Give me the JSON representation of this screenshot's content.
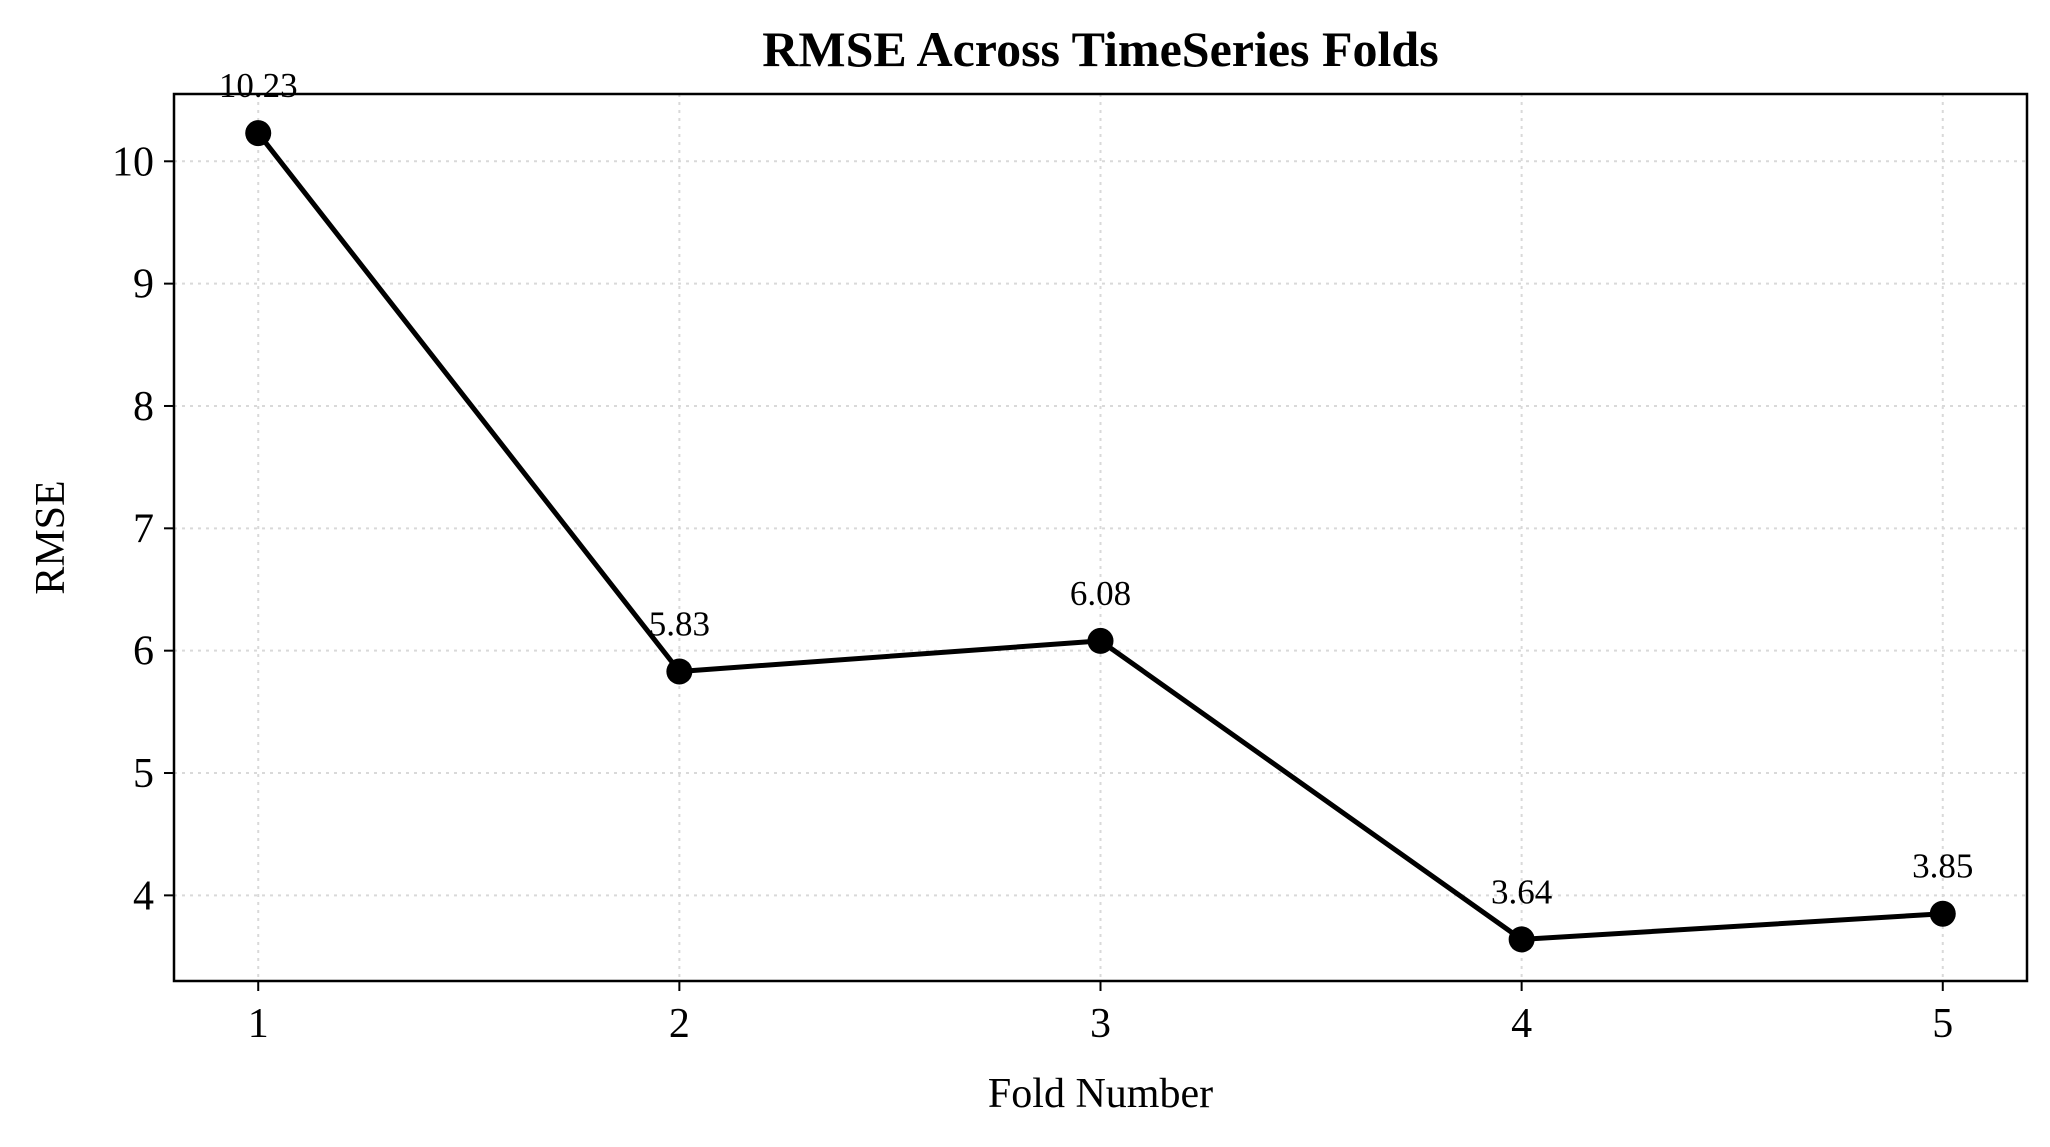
{
  "chart_data": {
    "type": "line",
    "title": "RMSE Across TimeSeries Folds",
    "xlabel": "Fold Number",
    "ylabel": "RMSE",
    "x": [
      1,
      2,
      3,
      4,
      5
    ],
    "x_tick_labels": [
      "1",
      "2",
      "3",
      "4",
      "5"
    ],
    "xlim": [
      0.8,
      5.2
    ],
    "y_ticks": [
      4,
      5,
      6,
      7,
      8,
      9,
      10
    ],
    "y_tick_labels": [
      "4",
      "5",
      "6",
      "7",
      "8",
      "9",
      "10"
    ],
    "ylim": [
      3.3,
      10.55
    ],
    "grid": true,
    "series": [
      {
        "values": [
          10.23,
          5.83,
          6.08,
          3.64,
          3.85
        ],
        "data_labels": [
          "10.23",
          "5.83",
          "6.08",
          "3.64",
          "3.85"
        ],
        "color": "#000000",
        "marker": "circle"
      }
    ]
  }
}
